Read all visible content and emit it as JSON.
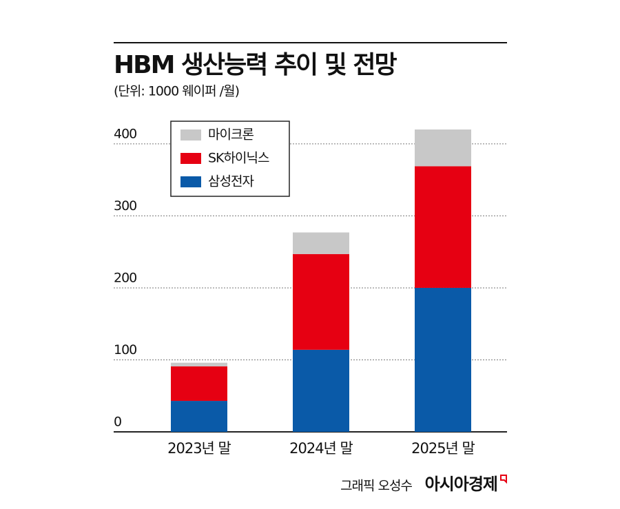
{
  "chart_data": {
    "type": "stacked_bar",
    "title": "HBM 생산능력 추이 및 전망",
    "subtitle": "(단위: 1000 웨이퍼 /월)",
    "categories": [
      "2023년 말",
      "2024년 말",
      "2025년 말"
    ],
    "series": [
      {
        "name": "마이크론",
        "color": "#c8c8c8",
        "values": [
          5,
          30,
          51
        ]
      },
      {
        "name": "SK하이닉스",
        "color": "#e60012",
        "values": [
          48,
          133,
          169
        ]
      },
      {
        "name": "삼성전자",
        "color": "#0a5aa8",
        "values": [
          43,
          114,
          200
        ]
      }
    ],
    "ylim": [
      0,
      420
    ],
    "yticks": [
      0,
      100,
      200,
      300,
      400
    ],
    "grid": true,
    "legend": "top-left",
    "credit": "그래픽 오성수",
    "source": "아시아경제"
  }
}
